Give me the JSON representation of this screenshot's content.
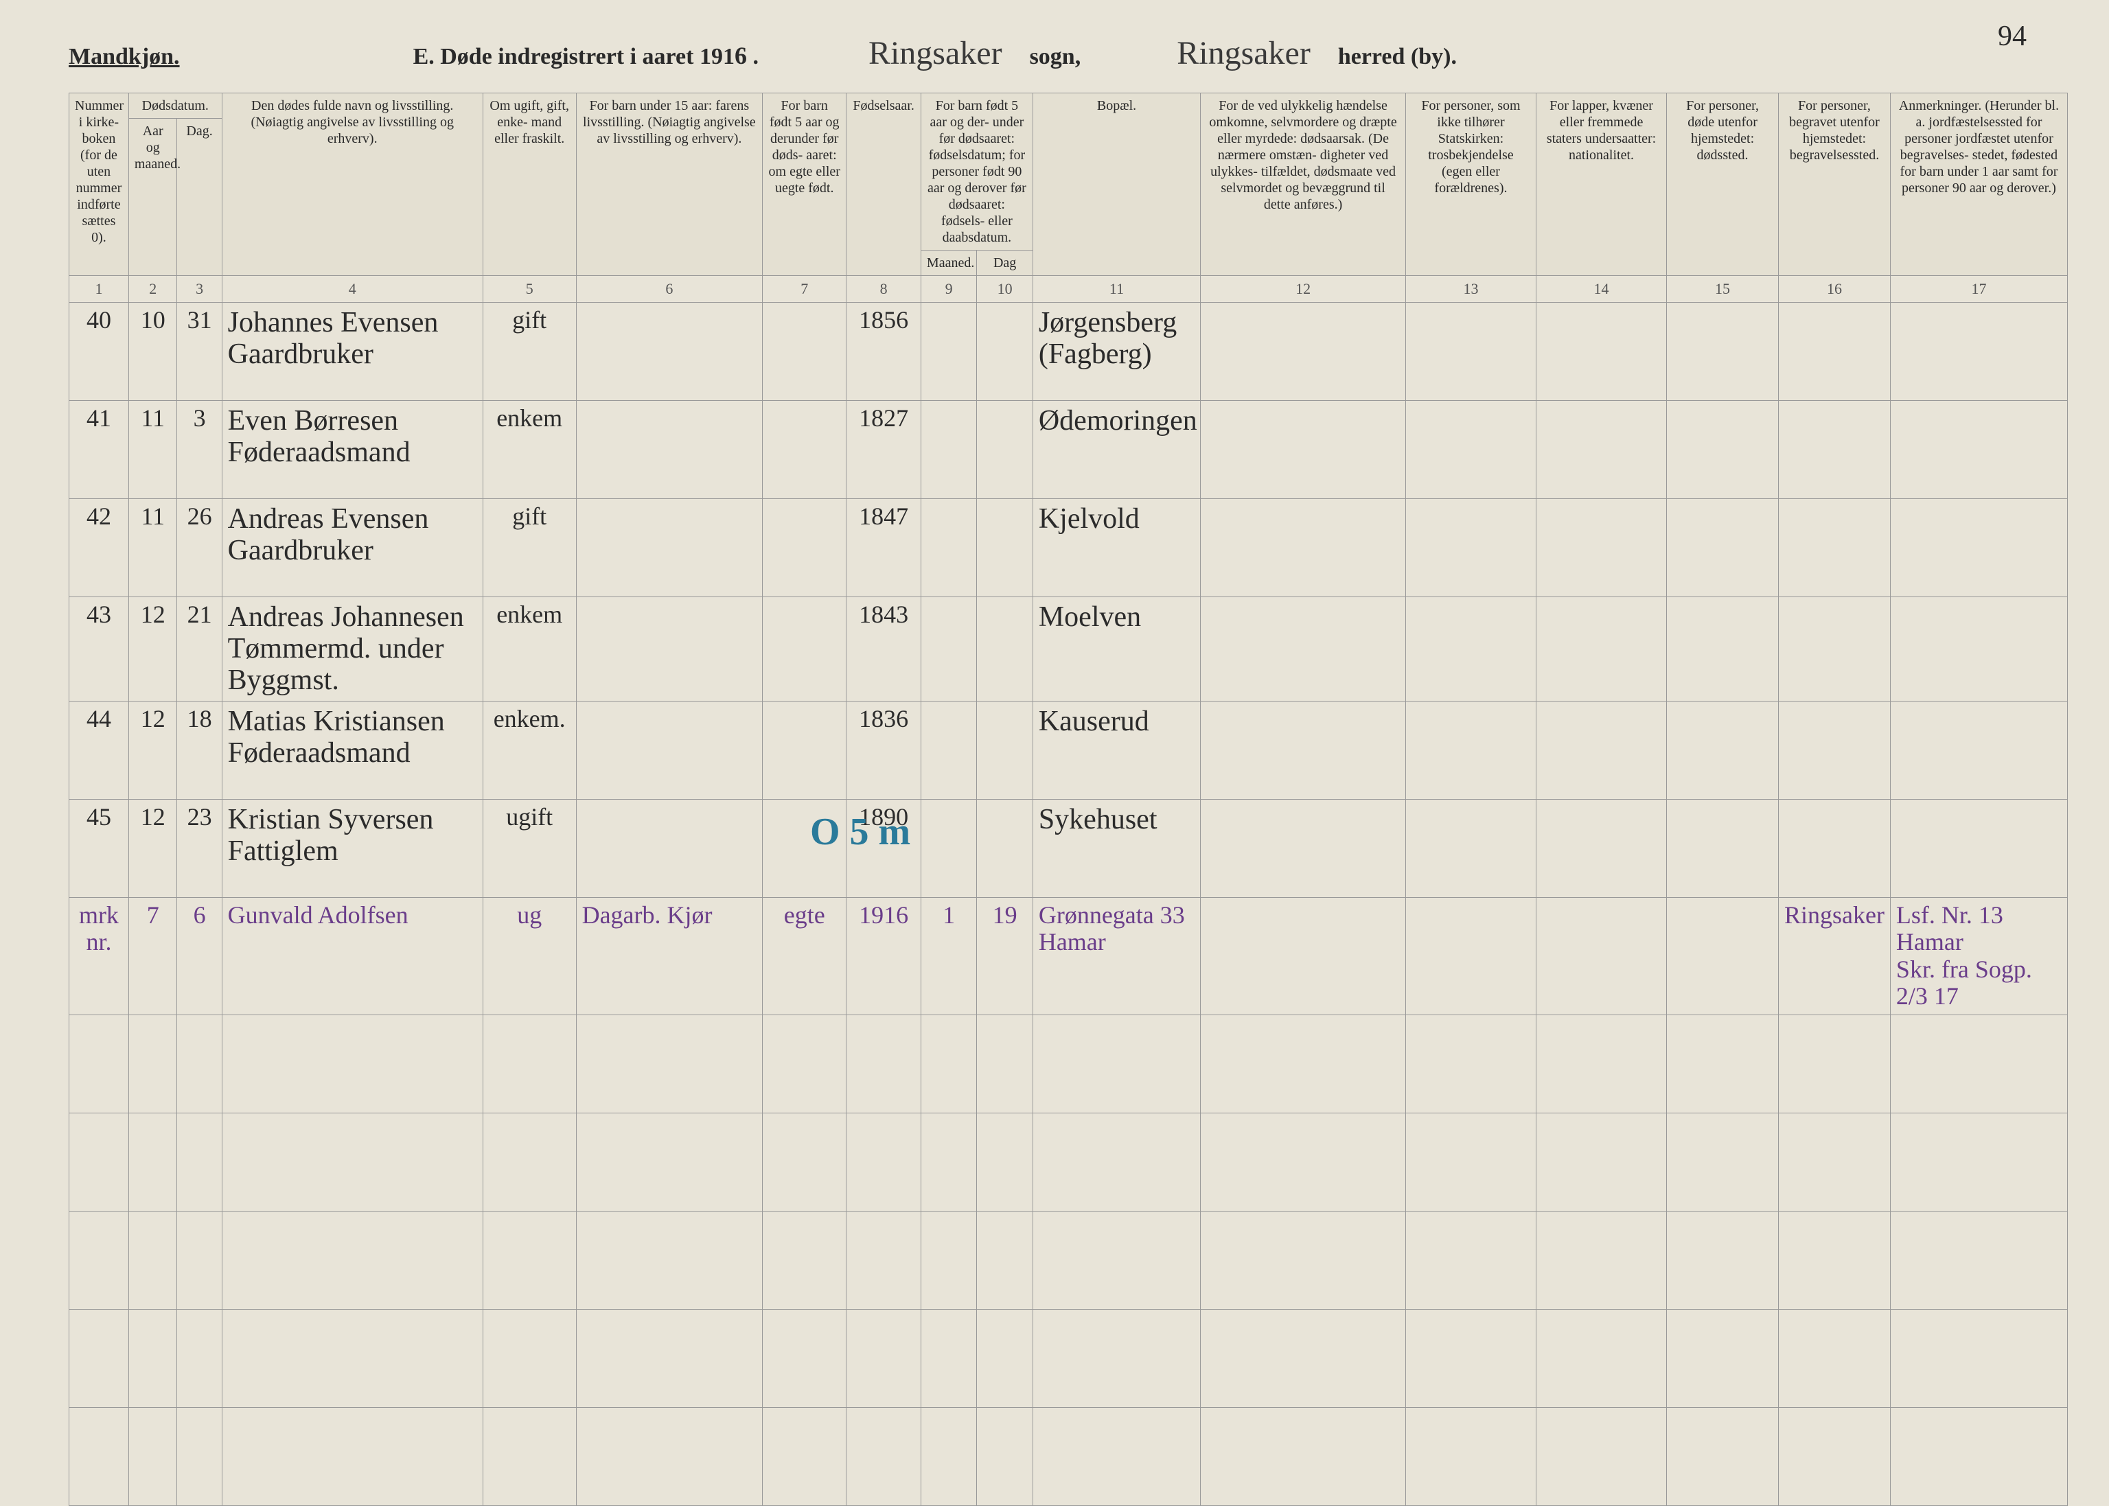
{
  "page_number": "94",
  "header": {
    "gender": "Mandkjøn.",
    "section": "E.  Døde indregistrert i aaret 191",
    "year_suffix": "6",
    "parish_label": "sogn,",
    "parish": "Ringsaker",
    "district_label": "herred (by).",
    "district": "Ringsaker"
  },
  "columns": {
    "c1": "Nummer i kirke- boken (for de uten nummer indførte sættes 0).",
    "c2_group": "Dødsdatum.",
    "c2": "Aar og maaned.",
    "c3": "Dag.",
    "c4": "Den dødes fulde navn og livsstilling. (Nøiagtig angivelse av livsstilling og erhverv).",
    "c5": "Om ugift, gift, enke- mand eller fraskilt.",
    "c6": "For barn under 15 aar: farens livsstilling. (Nøiagtig angivelse av livsstilling og erhverv).",
    "c7": "For barn født 5 aar og derunder før døds- aaret: om egte eller uegte født.",
    "c8": "Fødselsaar.",
    "c9_group": "For barn født 5 aar og der- under før dødsaaret: fødselsdatum; for personer født 90 aar og derover før dødsaaret: fødsels- eller daabsdatum.",
    "c9": "Maaned.",
    "c10": "Dag",
    "c11": "Bopæl.",
    "c12": "For de ved ulykkelig hændelse omkomne, selvmordere og dræpte eller myrdede: dødsaarsak. (De nærmere omstæn- digheter ved ulykkes- tilfældet, dødsmaate ved selvmordet og bevæggrund til dette anføres.)",
    "c13": "For personer, som ikke tilhører Statskirken: trosbekjendelse (egen eller forældrenes).",
    "c14": "For lapper, kvæner eller fremmede staters undersaatter: nationalitet.",
    "c15": "For personer, døde utenfor hjemstedet: dødssted.",
    "c16": "For personer, begravet utenfor hjemstedet: begravelsessted.",
    "c17": "Anmerkninger. (Herunder bl. a. jordfæstelsessted for personer jordfæstet utenfor begravelses- stedet, fødested for barn under 1 aar samt for personer 90 aar og derover.)"
  },
  "colnums": [
    "1",
    "2",
    "3",
    "4",
    "5",
    "6",
    "7",
    "8",
    "9",
    "10",
    "11",
    "12",
    "13",
    "14",
    "15",
    "16",
    "17"
  ],
  "rows": [
    {
      "num": "40",
      "month": "10",
      "day": "31",
      "name": "Johannes Evensen\nGaardbruker",
      "status": "gift",
      "father": "",
      "legit": "",
      "birthyear": "1856",
      "bm": "",
      "bd": "",
      "residence": "Jørgensberg\n(Fagberg)",
      "c12": "",
      "c13": "",
      "c14": "",
      "c15": "",
      "c16": "",
      "c17": ""
    },
    {
      "num": "41",
      "month": "11",
      "day": "3",
      "name": "Even Børresen\nFøderaadsmand",
      "status": "enkem",
      "father": "",
      "legit": "",
      "birthyear": "1827",
      "bm": "",
      "bd": "",
      "residence": "Ødemoringen",
      "c12": "",
      "c13": "",
      "c14": "",
      "c15": "",
      "c16": "",
      "c17": ""
    },
    {
      "num": "42",
      "month": "11",
      "day": "26",
      "name": "Andreas Evensen\nGaardbruker",
      "status": "gift",
      "father": "",
      "legit": "",
      "birthyear": "1847",
      "bm": "",
      "bd": "",
      "residence": "Kjelvold",
      "c12": "",
      "c13": "",
      "c14": "",
      "c15": "",
      "c16": "",
      "c17": ""
    },
    {
      "num": "43",
      "month": "12",
      "day": "21",
      "name": "Andreas Johannesen\nTømmermd. under Byggmst.",
      "status": "enkem",
      "father": "",
      "legit": "",
      "birthyear": "1843",
      "bm": "",
      "bd": "",
      "residence": "Moelven",
      "c12": "",
      "c13": "",
      "c14": "",
      "c15": "",
      "c16": "",
      "c17": ""
    },
    {
      "num": "44",
      "month": "12",
      "day": "18",
      "name": "Matias Kristiansen\nFøderaadsmand",
      "status": "enkem.",
      "father": "",
      "legit": "",
      "birthyear": "1836",
      "bm": "",
      "bd": "",
      "residence": "Kauserud",
      "c12": "",
      "c13": "",
      "c14": "",
      "c15": "",
      "c16": "",
      "c17": ""
    },
    {
      "num": "45",
      "month": "12",
      "day": "23",
      "name": "Kristian Syversen\nFattiglem",
      "status": "ugift",
      "father": "",
      "legit": "",
      "birthyear": "1890",
      "bm": "",
      "bd": "",
      "residence": "Sykehuset",
      "c12": "",
      "c13": "",
      "c14": "",
      "c15": "",
      "c16": "",
      "c17": ""
    },
    {
      "num": "mrk\nnr.",
      "month": "7",
      "day": "6",
      "name": "Gunvald Adolfsen",
      "status": "ug",
      "father": "Dagarb. Kjør",
      "legit": "egte",
      "birthyear": "1916",
      "bm": "1",
      "bd": "19",
      "residence": "Grønnegata 33\nHamar",
      "c12": "",
      "c13": "",
      "c14": "",
      "c15": "",
      "c16": "Ringsaker",
      "c17": "Lsf. Nr. 13 Hamar\nSkr. fra Sogp. 2/3 17",
      "purple": true
    }
  ],
  "blue_annotation": "O 5 m",
  "colors": {
    "paper": "#e8e4d8",
    "ink": "#2a2a2a",
    "rule": "#999999",
    "purple_ink": "#6a3d8a",
    "blue_ink": "#2a7a9a"
  },
  "col_widths_pct": [
    3.2,
    2.6,
    2.4,
    14,
    5,
    10,
    4.5,
    4,
    3,
    3,
    9,
    11,
    7,
    7,
    6,
    6,
    9.5
  ]
}
